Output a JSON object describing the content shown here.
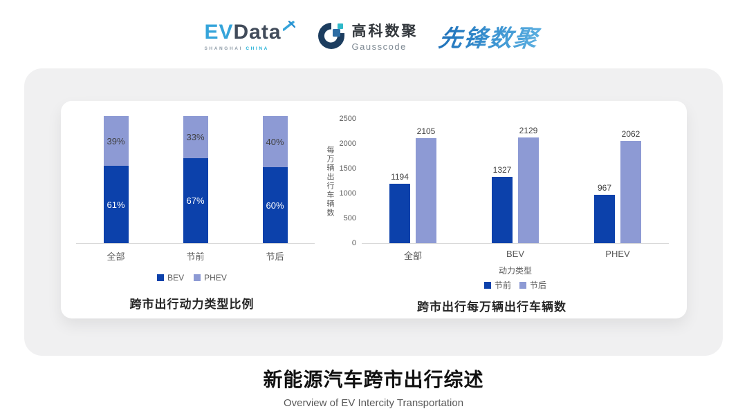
{
  "header": {
    "evdata": {
      "text_ev": "EV",
      "text_data": "Data",
      "sub_shanghai": "SHANGHAI",
      "sub_china": "CHINA"
    },
    "gausscode": {
      "name_cn": "高科数聚",
      "name_en": "Gausscode"
    },
    "pioneer": {
      "text": "先锋数聚"
    }
  },
  "colors": {
    "dark_blue": "#0c41ab",
    "light_blue": "#8d9ad4",
    "axis_line": "#d9d9d9",
    "pioneer_blue": "#2e7fc4",
    "evdata_blue": "#35a4da",
    "evdata_dark": "#414b5a",
    "gauss_navy": "#1c3d5f",
    "gauss_blue": "#2e6da4",
    "gauss_teal": "#2fb8c9"
  },
  "chart_data": [
    {
      "type": "bar",
      "subtype": "stacked-100",
      "title": "跨市出行动力类型比例",
      "categories": [
        "全部",
        "节前",
        "节后"
      ],
      "series": [
        {
          "name": "BEV",
          "values": [
            61,
            67,
            60
          ],
          "color": "#0c41ab"
        },
        {
          "name": "PHEV",
          "values": [
            39,
            33,
            40
          ],
          "color": "#8d9ad4"
        }
      ],
      "value_suffix": "%",
      "value_labels": "inside",
      "legend_position": "bottom",
      "grid": false,
      "ylim": [
        0,
        100
      ]
    },
    {
      "type": "bar",
      "subtype": "grouped",
      "title": "跨市出行每万辆出行车辆数",
      "categories": [
        "全部",
        "BEV",
        "PHEV"
      ],
      "series": [
        {
          "name": "节前",
          "values": [
            1194,
            1327,
            967
          ],
          "color": "#0c41ab"
        },
        {
          "name": "节后",
          "values": [
            2105,
            2129,
            2062
          ],
          "color": "#8d9ad4"
        }
      ],
      "xlabel": "动力类型",
      "ylabel": "每万辆出行车辆数",
      "ylim": [
        0,
        2500
      ],
      "yticks": [
        0,
        500,
        1000,
        1500,
        2000,
        2500
      ],
      "value_labels": "above",
      "legend_position": "bottom",
      "grid": false
    }
  ],
  "footer": {
    "title": "新能源汽车跨市出行综述",
    "subtitle": "Overview of EV Intercity Transportation"
  }
}
